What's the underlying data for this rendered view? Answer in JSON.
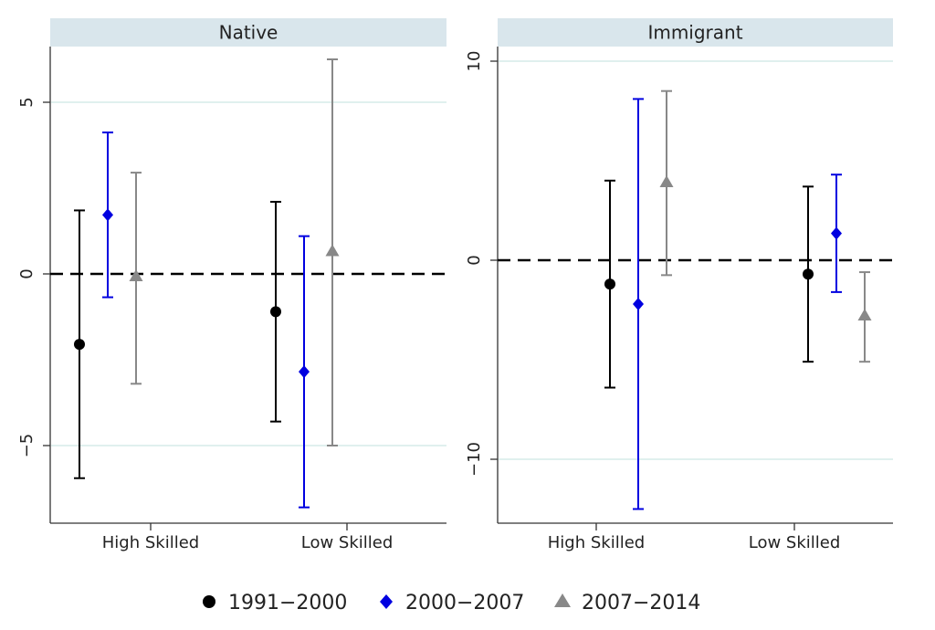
{
  "chart_data": [
    {
      "type": "errorbar",
      "panel_title": "Native",
      "categories": [
        "High Skilled",
        "Low Skilled"
      ],
      "ylim": [
        -7,
        7
      ],
      "yticks": [
        -5,
        0,
        5
      ],
      "ytick_labels": [
        "−5",
        "0",
        "5"
      ],
      "grid": "horizontal",
      "reference_line": 0,
      "series": [
        {
          "name": "1991−2000",
          "estimate": [
            -2.05,
            -1.1
          ],
          "lower": [
            -5.95,
            -4.3
          ],
          "upper": [
            1.85,
            2.1
          ]
        },
        {
          "name": "2000−2007",
          "estimate": [
            1.72,
            -2.85
          ],
          "lower": [
            -0.68,
            -6.8
          ],
          "upper": [
            4.12,
            1.1
          ]
        },
        {
          "name": "2007−2014",
          "estimate": [
            -0.08,
            0.65
          ],
          "lower": [
            -3.2,
            -5.0
          ],
          "upper": [
            2.95,
            6.25
          ]
        }
      ]
    },
    {
      "type": "errorbar",
      "panel_title": "Immigrant",
      "categories": [
        "High Skilled",
        "Low Skilled"
      ],
      "ylim": [
        -13,
        10.8
      ],
      "yticks": [
        -10,
        0,
        10
      ],
      "ytick_labels": [
        "−10",
        "0",
        "10"
      ],
      "grid": "horizontal",
      "reference_line": 0,
      "series": [
        {
          "name": "1991−2000",
          "estimate": [
            -1.2,
            -0.7
          ],
          "lower": [
            -6.4,
            -5.1
          ],
          "upper": [
            4.0,
            3.7
          ]
        },
        {
          "name": "2000−2007",
          "estimate": [
            -2.2,
            1.35
          ],
          "lower": [
            -12.5,
            -1.6
          ],
          "upper": [
            8.1,
            4.3
          ]
        },
        {
          "name": "2007−2014",
          "estimate": [
            3.9,
            -2.8
          ],
          "lower": [
            -0.75,
            -5.1
          ],
          "upper": [
            8.5,
            -0.6
          ]
        }
      ]
    }
  ],
  "legend": {
    "placement": "bottom",
    "items": [
      {
        "label": "1991−2000",
        "marker": "circle",
        "color": "#000000"
      },
      {
        "label": "2000−2007",
        "marker": "diamond",
        "color": "#0000e0"
      },
      {
        "label": "2007−2014",
        "marker": "triangle",
        "color": "#888888"
      }
    ]
  },
  "colors": {
    "series": [
      "#000000",
      "#0000e0",
      "#888888"
    ],
    "strip": "#d9e6ec",
    "grid": "#d6ebe8"
  }
}
